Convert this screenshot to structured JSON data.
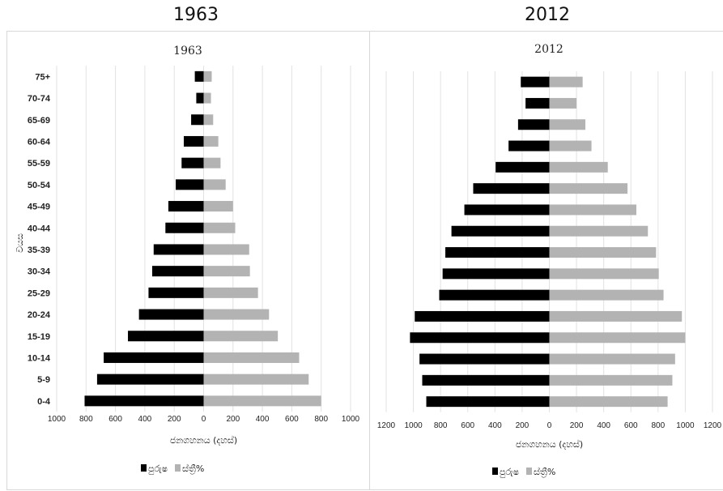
{
  "captions": [
    "1963",
    "2012"
  ],
  "colors": {
    "male": "#000000",
    "female": "#b3b3b3",
    "grid": "#e2e2e2"
  },
  "chart_data": [
    {
      "type": "bar",
      "orientation": "horizontal",
      "subtype": "population-pyramid",
      "title": "1963",
      "xlabel": "ජනගහනය (දහස්)",
      "ylabel": "වයස",
      "categories": [
        "0-4",
        "5-9",
        "10-14",
        "15-19",
        "20-24",
        "25-29",
        "30-34",
        "35-39",
        "40-44",
        "45-49",
        "50-54",
        "55-59",
        "60-64",
        "65-69",
        "70-74",
        "75+"
      ],
      "xlim": [
        -1000,
        1000
      ],
      "xticks": [
        "1000",
        "800",
        "600",
        "400",
        "200",
        "0",
        "200",
        "400",
        "600",
        "800",
        "1000"
      ],
      "series": [
        {
          "name": "පුරුෂ",
          "values": [
            810,
            725,
            680,
            515,
            440,
            375,
            350,
            340,
            260,
            240,
            190,
            150,
            135,
            85,
            50,
            60
          ]
        },
        {
          "name": "ස්ත්‍රී%",
          "values": [
            800,
            715,
            650,
            505,
            445,
            370,
            315,
            310,
            215,
            200,
            150,
            115,
            100,
            65,
            50,
            55
          ]
        }
      ],
      "legend": "bottom",
      "grid": true
    },
    {
      "type": "bar",
      "orientation": "horizontal",
      "subtype": "population-pyramid",
      "title": "2012",
      "xlabel": "ජනගහනය (දහස්)",
      "ylabel": "",
      "categories": [
        "0-4",
        "5-9",
        "10-14",
        "15-19",
        "20-24",
        "25-29",
        "30-34",
        "35-39",
        "40-44",
        "45-49",
        "50-54",
        "55-59",
        "60-64",
        "65-69",
        "70-74",
        "75+"
      ],
      "xlim": [
        -1200,
        1200
      ],
      "xticks": [
        "1200",
        "1000",
        "800",
        "600",
        "400",
        "200",
        "0",
        "200",
        "400",
        "600",
        "800",
        "1000",
        "1200"
      ],
      "series": [
        {
          "name": "පුරුෂ",
          "values": [
            905,
            935,
            955,
            1025,
            990,
            810,
            785,
            765,
            720,
            625,
            560,
            395,
            300,
            230,
            175,
            210
          ]
        },
        {
          "name": "ස්ත්‍රී%",
          "values": [
            870,
            905,
            925,
            1000,
            975,
            840,
            805,
            785,
            725,
            640,
            575,
            430,
            310,
            265,
            200,
            245
          ]
        }
      ],
      "legend": "bottom",
      "grid": true
    }
  ]
}
